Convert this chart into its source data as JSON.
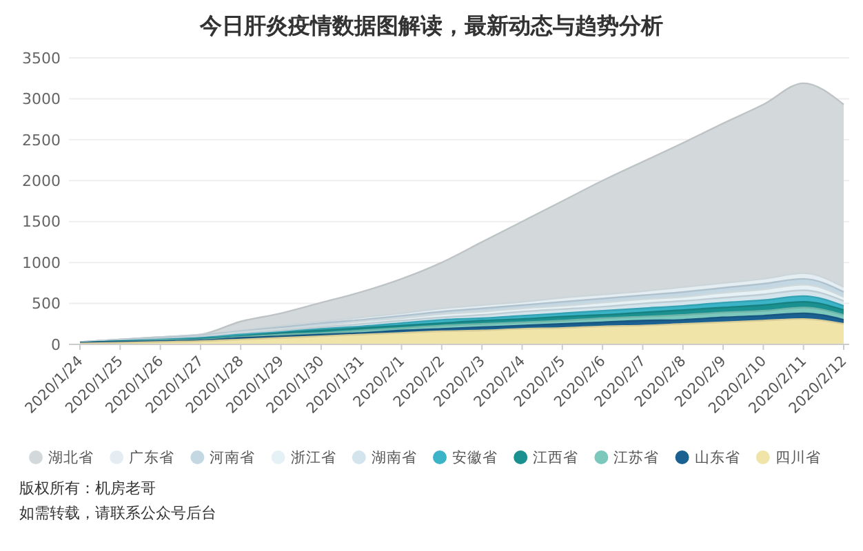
{
  "chart_data": {
    "type": "area",
    "title": "今日肝炎疫情数据图解读，最新动态与趋势分析",
    "categories": [
      "2020/1/24",
      "2020/1/25",
      "2020/1/26",
      "2020/1/27",
      "2020/1/28",
      "2020/1/29",
      "2020/1/30",
      "2020/1/31",
      "2020/2/1",
      "2020/2/2",
      "2020/2/3",
      "2020/2/4",
      "2020/2/5",
      "2020/2/6",
      "2020/2/7",
      "2020/2/8",
      "2020/2/9",
      "2020/2/10",
      "2020/2/11",
      "2020/2/12"
    ],
    "ylim": [
      0,
      3500
    ],
    "yticks": [
      0,
      500,
      1000,
      1500,
      2000,
      2500,
      3000,
      3500
    ],
    "grid": "y",
    "legend": "bottom",
    "marker": "none",
    "series": [
      {
        "name": "湖北省",
        "color": "#d3d9db",
        "values": [
          30,
          60,
          90,
          120,
          280,
          380,
          510,
          640,
          800,
          1000,
          1250,
          1500,
          1750,
          2000,
          2230,
          2460,
          2700,
          2930,
          3190,
          2930
        ]
      },
      {
        "name": "广东省",
        "color": "#e3edf2",
        "values": [
          30,
          60,
          90,
          120,
          170,
          230,
          280,
          330,
          380,
          440,
          480,
          520,
          570,
          610,
          650,
          700,
          750,
          800,
          870,
          700
        ]
      },
      {
        "name": "河南省",
        "color": "#c4d8e4",
        "values": [
          30,
          60,
          80,
          110,
          160,
          210,
          260,
          300,
          350,
          400,
          440,
          480,
          520,
          560,
          600,
          640,
          690,
          740,
          800,
          640
        ]
      },
      {
        "name": "浙江省",
        "color": "#e6f1f5",
        "values": [
          30,
          50,
          70,
          100,
          150,
          190,
          230,
          280,
          320,
          370,
          400,
          440,
          470,
          510,
          550,
          580,
          630,
          670,
          730,
          580
        ]
      },
      {
        "name": "湖南省",
        "color": "#d4e4ec",
        "values": [
          30,
          50,
          70,
          90,
          130,
          170,
          210,
          250,
          290,
          330,
          360,
          400,
          430,
          460,
          500,
          530,
          570,
          610,
          660,
          530
        ]
      },
      {
        "name": "安徽省",
        "color": "#3bb4c8",
        "values": [
          20,
          40,
          60,
          80,
          120,
          150,
          190,
          220,
          260,
          300,
          320,
          350,
          380,
          410,
          440,
          470,
          510,
          540,
          590,
          470
        ]
      },
      {
        "name": "江西省",
        "color": "#1a9090",
        "values": [
          20,
          40,
          50,
          70,
          100,
          140,
          170,
          200,
          230,
          260,
          290,
          310,
          340,
          360,
          390,
          420,
          450,
          480,
          520,
          420
        ]
      },
      {
        "name": "江苏省",
        "color": "#7cc8bc",
        "values": [
          20,
          30,
          50,
          60,
          90,
          120,
          140,
          170,
          200,
          230,
          250,
          270,
          290,
          320,
          340,
          360,
          390,
          410,
          450,
          360
        ]
      },
      {
        "name": "山东省",
        "color": "#1a6090",
        "values": [
          20,
          30,
          40,
          50,
          80,
          100,
          120,
          140,
          170,
          190,
          210,
          230,
          250,
          270,
          290,
          300,
          330,
          350,
          380,
          300
        ]
      },
      {
        "name": "四川省",
        "color": "#f0e4a8",
        "values": [
          10,
          20,
          30,
          40,
          60,
          80,
          100,
          120,
          140,
          160,
          170,
          190,
          200,
          220,
          230,
          250,
          270,
          290,
          310,
          250
        ]
      }
    ],
    "annotations": [
      "版权所有：机房老哥",
      "如需转载，请联系公众号后台"
    ]
  }
}
